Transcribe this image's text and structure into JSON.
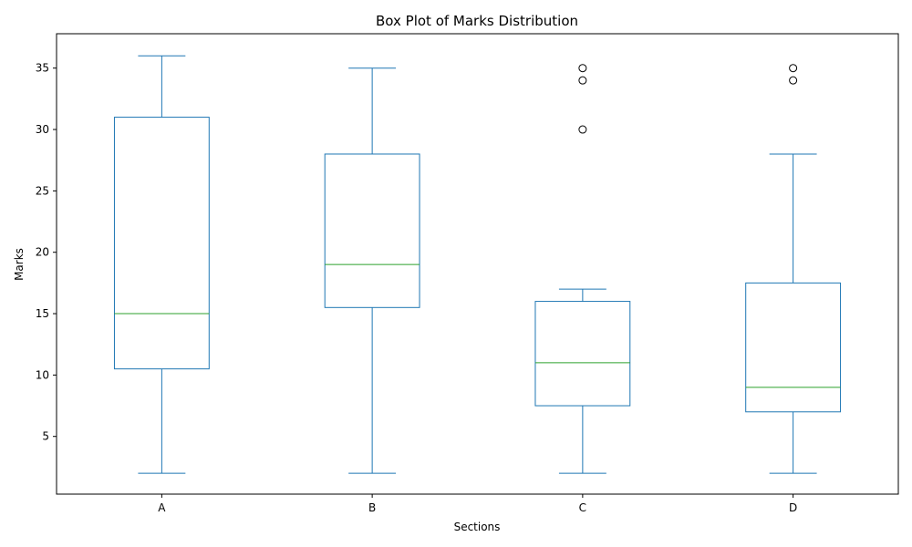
{
  "chart_data": {
    "type": "box",
    "title": "Box Plot of Marks Distribution",
    "xlabel": "Sections",
    "ylabel": "Marks",
    "ylim": [
      0.3,
      37.8
    ],
    "yticks": [
      5,
      10,
      15,
      20,
      25,
      30,
      35
    ],
    "grid": false,
    "categories": [
      "A",
      "B",
      "C",
      "D"
    ],
    "boxes": [
      {
        "category": "A",
        "whisker_low": 2,
        "q1": 10.5,
        "median": 15,
        "q3": 31,
        "whisker_high": 36,
        "outliers": []
      },
      {
        "category": "B",
        "whisker_low": 2,
        "q1": 15.5,
        "median": 19,
        "q3": 28,
        "whisker_high": 35,
        "outliers": []
      },
      {
        "category": "C",
        "whisker_low": 2,
        "q1": 7.5,
        "median": 11,
        "q3": 16,
        "whisker_high": 17,
        "outliers": [
          30,
          34,
          35
        ]
      },
      {
        "category": "D",
        "whisker_low": 2,
        "q1": 7,
        "median": 9,
        "q3": 17.5,
        "whisker_high": 28,
        "outliers": [
          34,
          35
        ]
      }
    ],
    "colors": {
      "box": "#1f77b4",
      "median": "#2ca02c",
      "outlier": "#000000"
    }
  }
}
